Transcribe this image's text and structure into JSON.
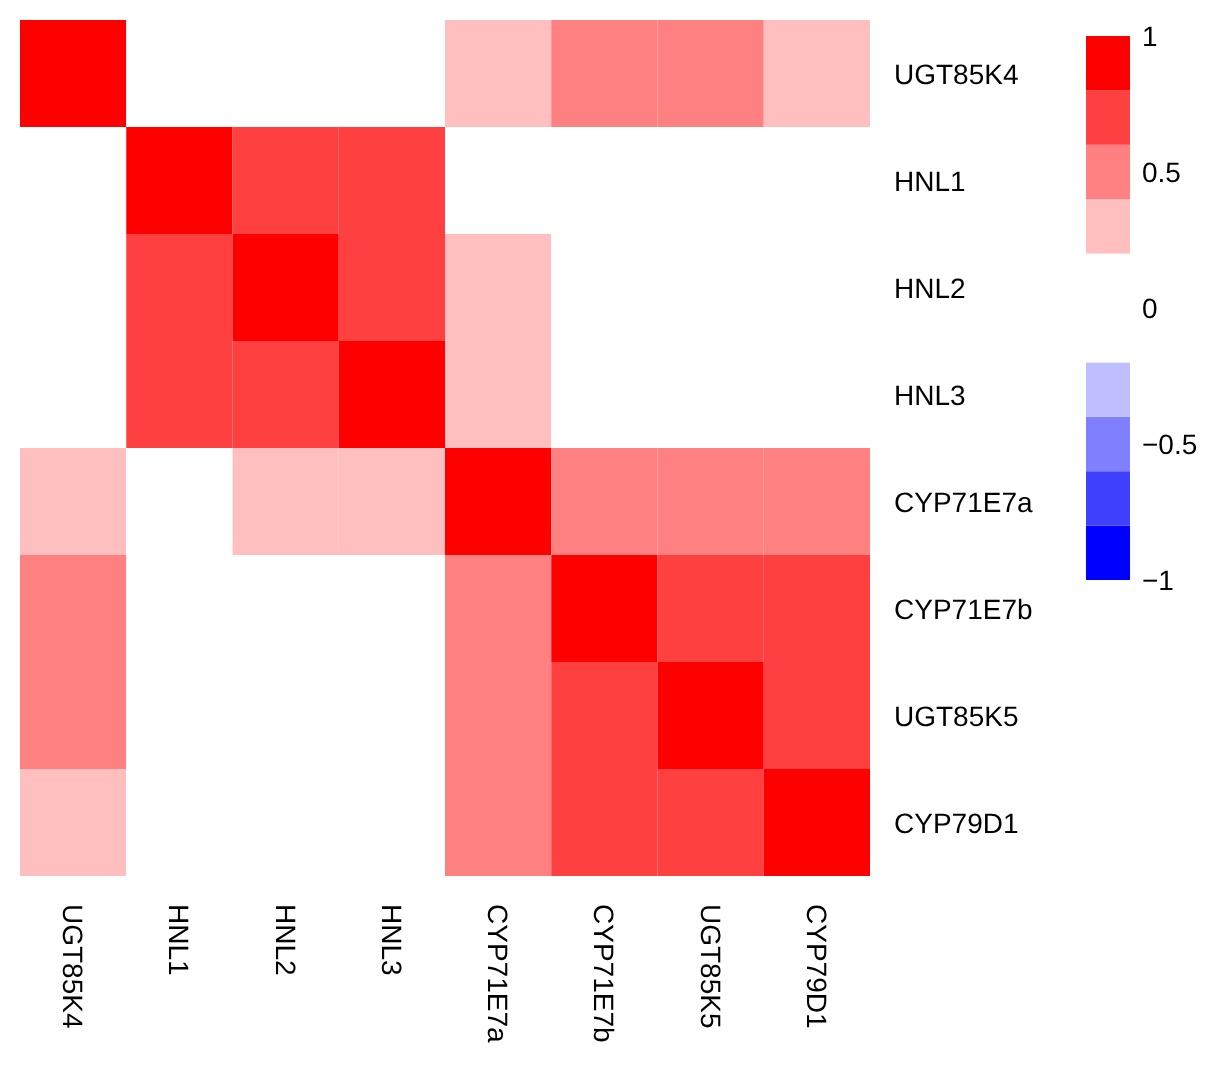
{
  "chart_data": {
    "type": "heatmap",
    "categories": [
      "UGT85K4",
      "HNL1",
      "HNL2",
      "HNL3",
      "CYP71E7a",
      "CYP71E7b",
      "UGT85K5",
      "CYP79D1"
    ],
    "y_categories": [
      "UGT85K4",
      "HNL1",
      "HNL2",
      "HNL3",
      "CYP71E7a",
      "CYP71E7b",
      "UGT85K5",
      "CYP79D1"
    ],
    "cells": [
      [
        1,
        null,
        null,
        null,
        0.3,
        0.5,
        0.5,
        0.3
      ],
      [
        null,
        1,
        0.7,
        0.7,
        null,
        null,
        null,
        null
      ],
      [
        null,
        0.7,
        1,
        0.7,
        0.3,
        null,
        null,
        null
      ],
      [
        null,
        0.7,
        0.7,
        1,
        0.3,
        null,
        null,
        null
      ],
      [
        0.3,
        null,
        0.3,
        0.3,
        1,
        0.5,
        0.5,
        0.5
      ],
      [
        0.5,
        null,
        null,
        null,
        0.5,
        1,
        0.7,
        0.7
      ],
      [
        0.5,
        null,
        null,
        null,
        0.5,
        0.7,
        1,
        0.7
      ],
      [
        0.3,
        null,
        null,
        null,
        0.5,
        0.7,
        0.7,
        1
      ]
    ],
    "clim": [
      -1,
      1
    ],
    "cticks": [
      1,
      0.5,
      0,
      {
        "value": -0.5,
        "label": "−0.5"
      },
      {
        "value": -1,
        "label": "−1"
      }
    ]
  }
}
